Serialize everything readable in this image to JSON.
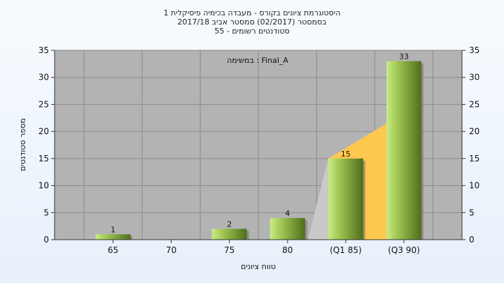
{
  "chart_data": {
    "type": "bar",
    "title_lines": [
      "היסטוגרמת ציונים בקורס - מעבדה בכימיה פיסיקלית 1",
      "בסמסטר  (02/2017)  סמסטר אביב 2017/18",
      "סטודנטים רשומים - 55"
    ],
    "annotation": "במשימה : Final_A",
    "xlabel": "טווח ציונים",
    "ylabel": "מספר סטודנטים",
    "categories": [
      "65",
      "70",
      "75",
      "80",
      "(Q1 85)",
      "(Q3 90)"
    ],
    "values": [
      1,
      0,
      2,
      4,
      15,
      33
    ],
    "data_labels": [
      "1",
      "",
      "2",
      "4",
      "15",
      "33"
    ],
    "ylim": [
      0,
      35
    ],
    "yticks": [
      "0",
      "5",
      "10",
      "15",
      "20",
      "25",
      "30",
      "35"
    ],
    "grid": true,
    "colors": {
      "plot_bg": "#b3b3b3",
      "bar_light": "#c8ec84",
      "bar_mid": "#9cc24f",
      "bar_dark": "#4f6d1c",
      "quartile_gray": "#c9c9c9",
      "quartile_yellow": "#ffc84f"
    }
  }
}
